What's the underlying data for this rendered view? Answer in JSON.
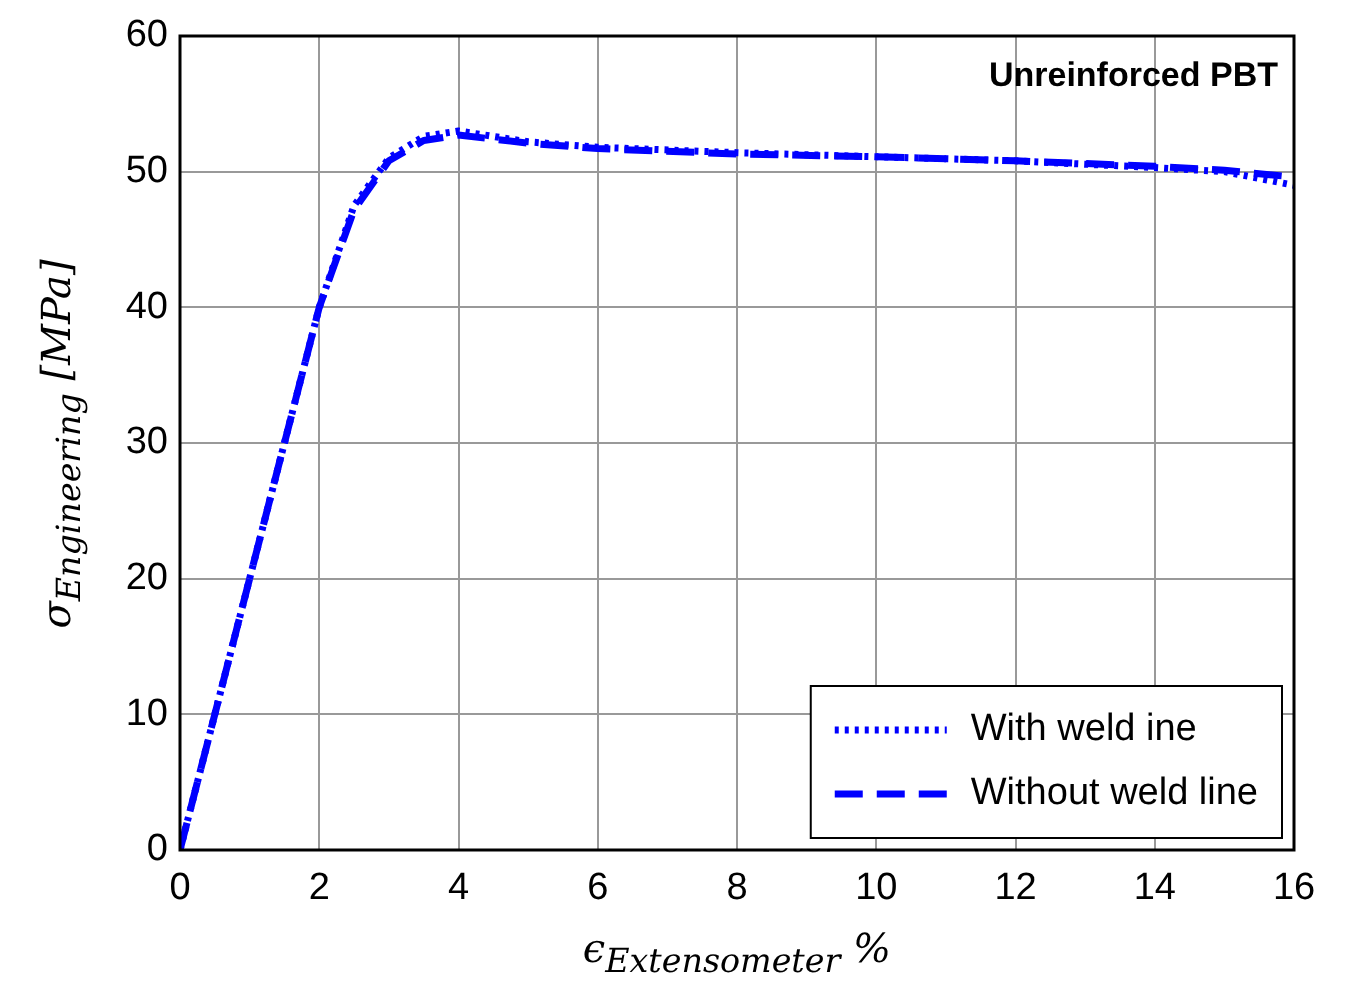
{
  "chart_data": {
    "type": "line",
    "xlabel": "ϵ$_{Extensometer}$ %",
    "ylabel": "σ$_{Engineering}$ [MPa]",
    "annotations": [
      "Unreinforced PBT"
    ],
    "xlim": [
      0,
      16
    ],
    "xticks": [
      0,
      2,
      4,
      6,
      8,
      10,
      12,
      14,
      16
    ],
    "ylim": [
      0,
      60
    ],
    "yticks": [
      0,
      10,
      20,
      30,
      40,
      50,
      60
    ],
    "grid": true,
    "legend": "bottom right",
    "marker": "none",
    "series": [
      {
        "name": "With weld ine",
        "color": "#0000ff",
        "line_style": "dotted",
        "x": [
          0,
          0.5,
          1,
          1.5,
          2,
          2.5,
          3,
          3.5,
          4,
          5,
          6,
          8,
          10,
          12,
          14,
          15,
          16
        ],
        "values": [
          0,
          10,
          20,
          30,
          40,
          47.5,
          51,
          52.6,
          53,
          52.2,
          51.8,
          51.4,
          51.1,
          50.8,
          50.3,
          50,
          49
        ]
      },
      {
        "name": "Without weld line",
        "color": "#0000ff",
        "line_style": "dashed",
        "x": [
          0,
          0.5,
          1,
          1.5,
          2,
          2.5,
          3,
          3.5,
          4,
          5,
          6,
          8,
          10,
          12,
          14,
          15,
          16
        ],
        "values": [
          0,
          10,
          20,
          30,
          40,
          47.2,
          50.8,
          52.3,
          52.7,
          52.1,
          51.7,
          51.3,
          51.1,
          50.8,
          50.4,
          50.1,
          49.6
        ]
      }
    ]
  }
}
